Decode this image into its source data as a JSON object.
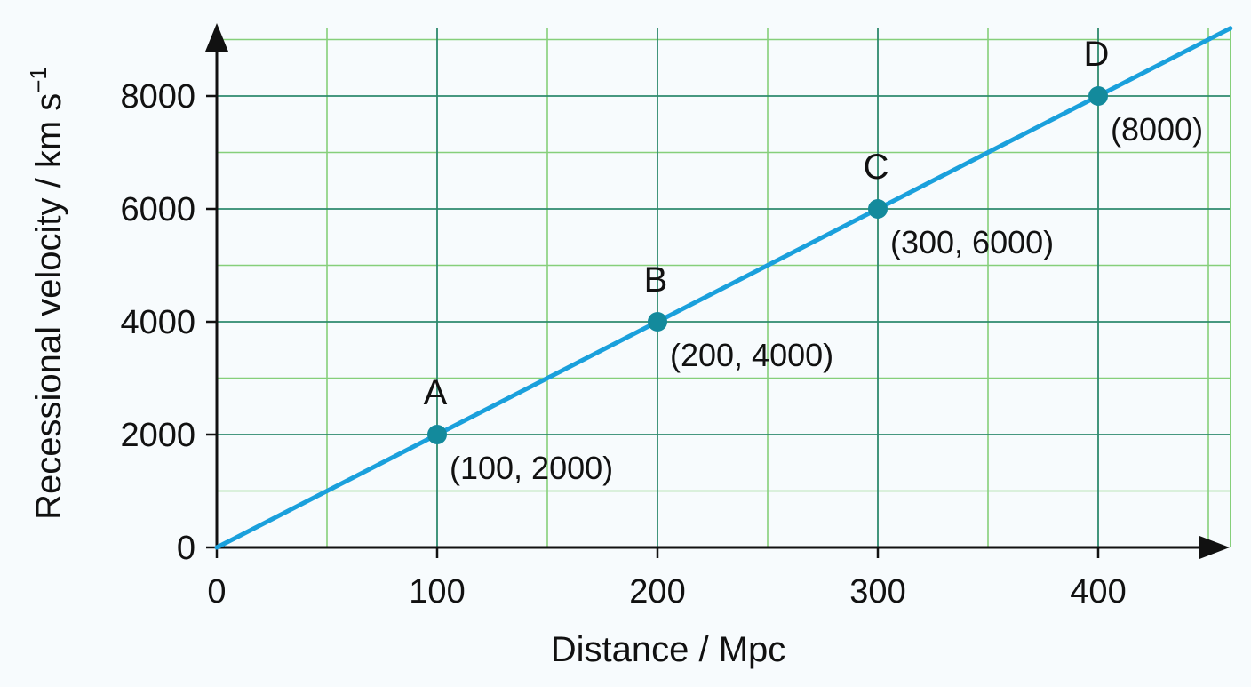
{
  "chart_data": {
    "type": "line",
    "xlabel": "Distance / Mpc",
    "ylabel": "Recessional velocity / km s",
    "ylabel_superscript": "−1",
    "xlim": [
      0,
      460
    ],
    "ylim": [
      0,
      9200
    ],
    "x_ticks": [
      "0",
      "100",
      "200",
      "300",
      "400"
    ],
    "x_tick_values": [
      0,
      100,
      200,
      300,
      400
    ],
    "y_ticks": [
      "0",
      "2000",
      "4000",
      "6000",
      "8000"
    ],
    "y_tick_values": [
      0,
      2000,
      4000,
      6000,
      8000
    ],
    "grid": {
      "on": true,
      "major_x_step": 100,
      "minor_x_step": 50,
      "major_y_step": 2000,
      "minor_y_step": 1000
    },
    "line": {
      "x": [
        0,
        460
      ],
      "y": [
        0,
        9200
      ]
    },
    "points": [
      {
        "letter": "A",
        "x": 100,
        "y": 2000,
        "coord_label": "(100, 2000)"
      },
      {
        "letter": "B",
        "x": 200,
        "y": 4000,
        "coord_label": "(200, 4000)"
      },
      {
        "letter": "C",
        "x": 300,
        "y": 6000,
        "coord_label": "(300, 6000)"
      },
      {
        "letter": "D",
        "x": 400,
        "y": 8000,
        "coord_label": "(8000)"
      }
    ],
    "colors": {
      "line": "#1aa0dc",
      "point": "#138a9c",
      "major_grid": "#2e8a6e",
      "minor_grid": "#86cf7a",
      "axis": "#111111"
    }
  }
}
